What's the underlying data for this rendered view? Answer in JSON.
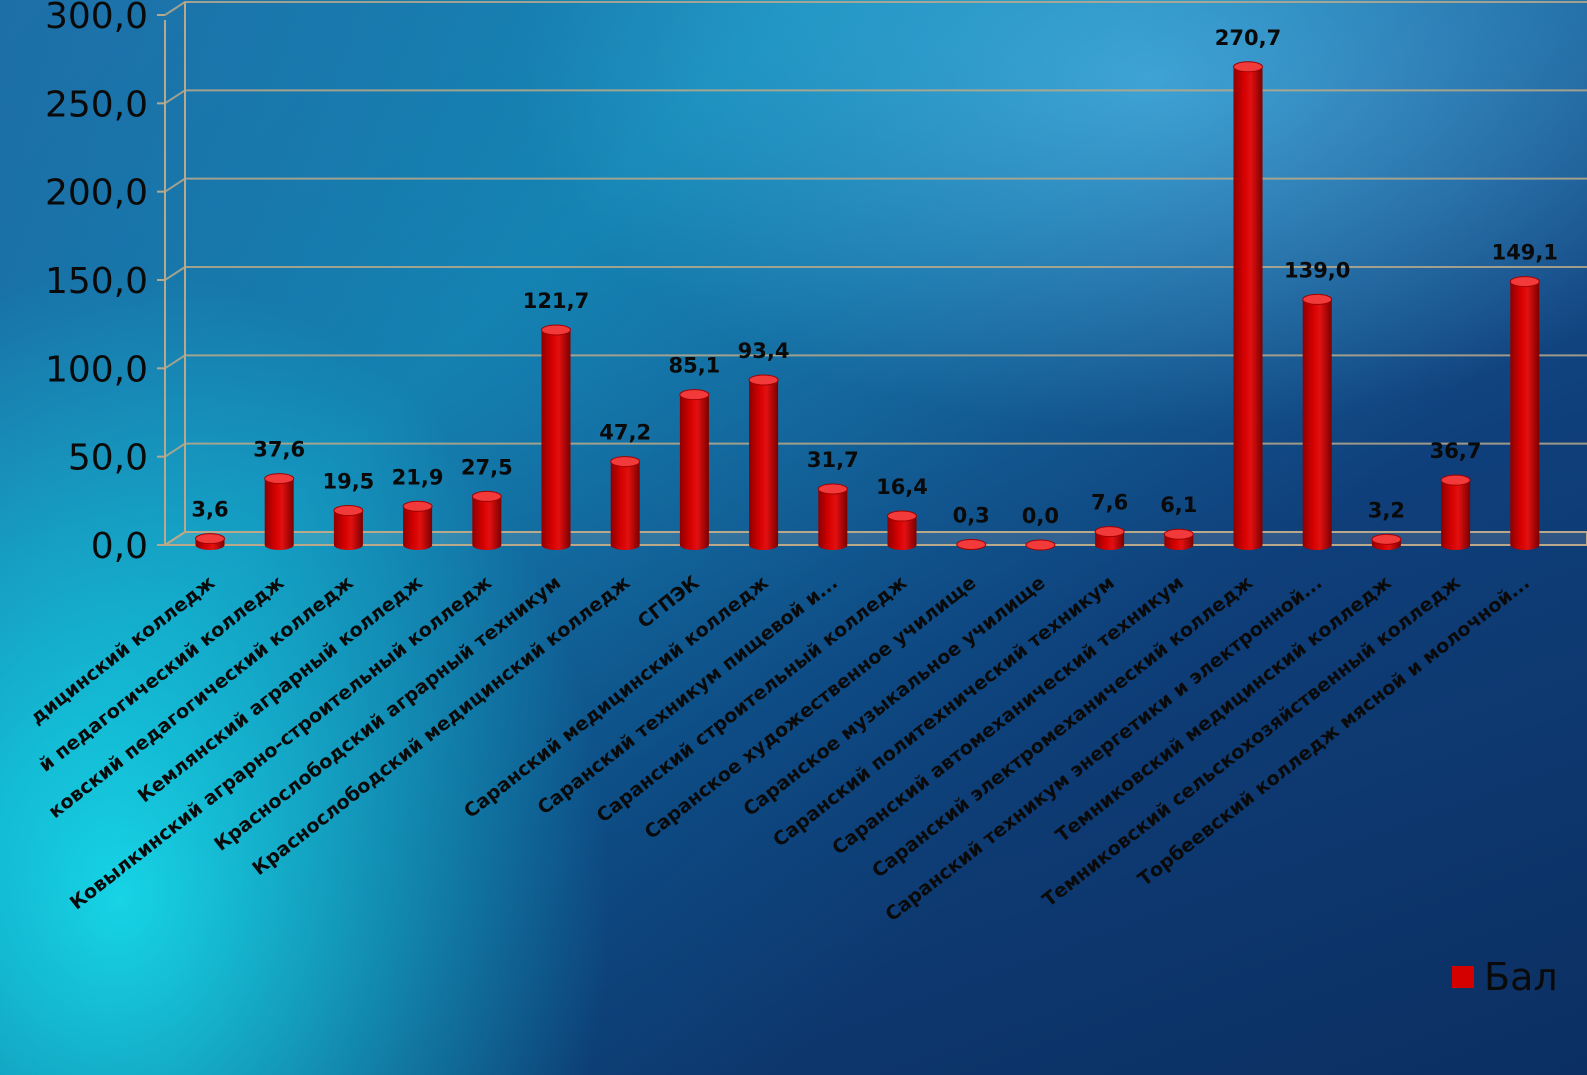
{
  "chart_data": {
    "type": "bar",
    "ylim": [
      0,
      300
    ],
    "yticks": [
      "0,0",
      "50,0",
      "100,0",
      "150,0",
      "200,0",
      "250,0",
      "300,0"
    ],
    "grid": true,
    "legend_position": "bottom-right",
    "bar_color": "#d40000",
    "series": [
      {
        "name": "Бал",
        "values": [
          3.6,
          37.6,
          19.5,
          21.9,
          27.5,
          121.7,
          47.2,
          85.1,
          93.4,
          31.7,
          16.4,
          0.3,
          0.0,
          7.6,
          6.1,
          270.7,
          139.0,
          3.2,
          36.7,
          149.1
        ]
      }
    ],
    "value_labels": [
      "3,6",
      "37,6",
      "19,5",
      "21,9",
      "27,5",
      "121,7",
      "47,2",
      "85,1",
      "93,4",
      "31,7",
      "16,4",
      "0,3",
      "0,0",
      "7,6",
      "6,1",
      "270,7",
      "139,0",
      "3,2",
      "36,7",
      "149,1"
    ],
    "categories": [
      "дицинский колледж",
      "й педагогический колледж",
      "ковский педагогический колледж",
      "Кемлянский аграрный колледж",
      "Ковылкинский аграрно-строительный колледж",
      "Краснослободский аграрный техникум",
      "Краснослободский медицинский колледж",
      "СГПЭК",
      "Саранский медицинский колледж",
      "Саранский техникум пищевой и...",
      "Саранский строительный колледж",
      "Саранское художественное училище",
      "Саранское музыкальное училище",
      "Саранский политехнический техникум",
      "Саранский автомеханический техникум",
      "Саранский электромеханический колледж",
      "Саранский техникум энергетики и электронной...",
      "Темниковский медицинский колледж",
      "Темниковский сельскохозяйственный  колледж",
      "Торбеевский  колледж мясной и молочной..."
    ]
  }
}
